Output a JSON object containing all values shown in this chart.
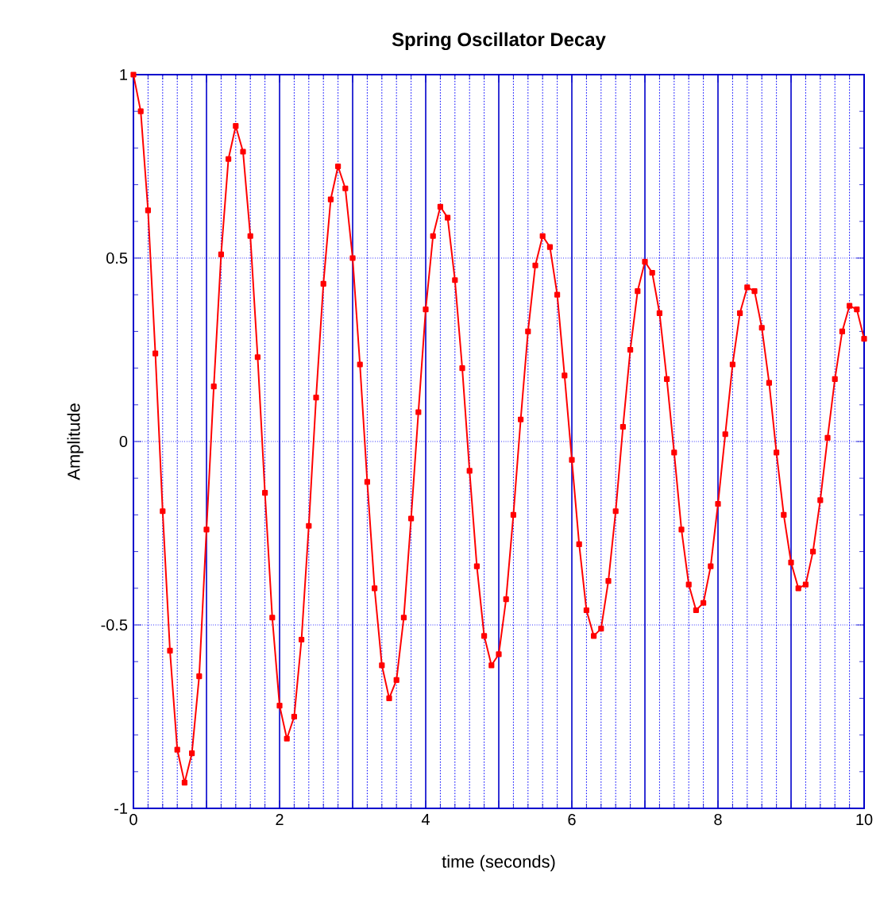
{
  "chart_data": {
    "type": "line",
    "title": "Spring Oscillator Decay",
    "xlabel": "time (seconds)",
    "ylabel": "Amplitude",
    "x": [
      0,
      0.1,
      0.2,
      0.3,
      0.4,
      0.5,
      0.6,
      0.7,
      0.8,
      0.9,
      1,
      1.1,
      1.2,
      1.3,
      1.4,
      1.5,
      1.6,
      1.7,
      1.8,
      1.9,
      2,
      2.1,
      2.2,
      2.3,
      2.4,
      2.5,
      2.6,
      2.7,
      2.8,
      2.9,
      3,
      3.1,
      3.2,
      3.3,
      3.4,
      3.5,
      3.6,
      3.7,
      3.8,
      3.9,
      4,
      4.1,
      4.2,
      4.3,
      4.4,
      4.5,
      4.6,
      4.7,
      4.8,
      4.9,
      5,
      5.1,
      5.2,
      5.3,
      5.4,
      5.5,
      5.6,
      5.7,
      5.8,
      5.9,
      6,
      6.1,
      6.2,
      6.3,
      6.4,
      6.5,
      6.6,
      6.7,
      6.8,
      6.9,
      7,
      7.1,
      7.2,
      7.3,
      7.4,
      7.5,
      7.6,
      7.7,
      7.8,
      7.9,
      8,
      8.1,
      8.2,
      8.3,
      8.4,
      8.5,
      8.6,
      8.7,
      8.8,
      8.9,
      9,
      9.1,
      9.2,
      9.3,
      9.4,
      9.5,
      9.6,
      9.7,
      9.8,
      9.9,
      10
    ],
    "series": [
      {
        "color": "#ff0000",
        "values": [
          1.0,
          0.9,
          0.63,
          0.24,
          -0.19,
          -0.57,
          -0.84,
          -0.93,
          -0.85,
          -0.64,
          -0.24,
          0.15,
          0.51,
          0.77,
          0.86,
          0.79,
          0.56,
          0.23,
          -0.14,
          -0.48,
          -0.72,
          -0.81,
          -0.75,
          -0.54,
          -0.23,
          0.12,
          0.43,
          0.66,
          0.75,
          0.69,
          0.5,
          0.21,
          -0.11,
          -0.4,
          -0.61,
          -0.7,
          -0.65,
          -0.48,
          -0.21,
          0.08,
          0.36,
          0.56,
          0.64,
          0.61,
          0.44,
          0.2,
          -0.08,
          -0.34,
          -0.53,
          -0.61,
          -0.58,
          -0.43,
          -0.2,
          0.06,
          0.3,
          0.48,
          0.56,
          0.53,
          0.4,
          0.18,
          -0.05,
          -0.28,
          -0.46,
          -0.53,
          -0.51,
          -0.38,
          -0.19,
          0.04,
          0.25,
          0.41,
          0.49,
          0.46,
          0.35,
          0.17,
          -0.03,
          -0.24,
          -0.39,
          -0.46,
          -0.44,
          -0.34,
          -0.17,
          0.02,
          0.21,
          0.35,
          0.42,
          0.41,
          0.31,
          0.16,
          -0.03,
          -0.2,
          -0.33,
          -0.4,
          -0.39,
          -0.3,
          -0.16,
          0.01,
          0.17,
          0.3,
          0.37,
          0.36,
          0.28
        ]
      }
    ],
    "xlim": [
      0,
      10
    ],
    "ylim": [
      -1,
      1
    ],
    "xticks": [
      {
        "value": 0,
        "label": "0"
      },
      {
        "value": 1,
        "label": null
      },
      {
        "value": 2,
        "label": "2"
      },
      {
        "value": 3,
        "label": null
      },
      {
        "value": 4,
        "label": "4"
      },
      {
        "value": 5,
        "label": null
      },
      {
        "value": 6,
        "label": "6"
      },
      {
        "value": 7,
        "label": null
      },
      {
        "value": 8,
        "label": "8"
      },
      {
        "value": 9,
        "label": null
      },
      {
        "value": 10,
        "label": "10"
      }
    ],
    "yticks": [
      -1,
      -0.5,
      0,
      0.5,
      1
    ],
    "grid": true,
    "marker": "square",
    "line_style": "solid"
  }
}
